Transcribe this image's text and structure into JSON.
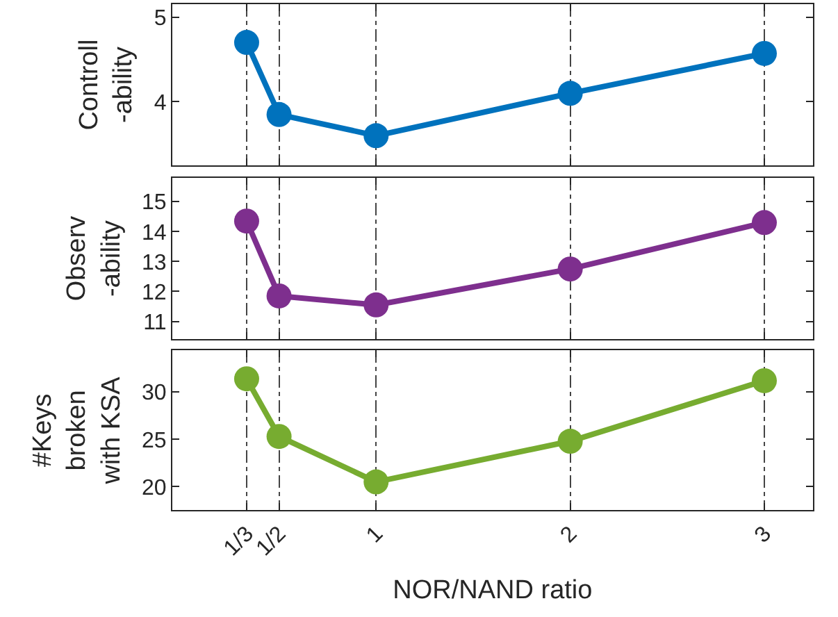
{
  "chart_data": [
    {
      "type": "line",
      "ylabel": "Controll\n-ability",
      "x": [
        0.333,
        0.5,
        1,
        2,
        3
      ],
      "xlim": [
        -0.05,
        3.25
      ],
      "series": [
        {
          "color": "#0072bd",
          "values": [
            4.7,
            3.85,
            3.6,
            4.1,
            4.57
          ]
        }
      ],
      "ylim": [
        3.25,
        5.15
      ],
      "yticks": [
        4,
        5
      ],
      "grid": "x",
      "marker": "circle",
      "line_style": "solid",
      "tick_labels": "y"
    },
    {
      "type": "line",
      "ylabel": "Observ\n-ability",
      "x": [
        0.333,
        0.5,
        1,
        2,
        3
      ],
      "xlim": [
        -0.05,
        3.25
      ],
      "series": [
        {
          "color": "#7e2f8e",
          "values": [
            14.35,
            11.85,
            11.55,
            12.75,
            14.3
          ]
        }
      ],
      "ylim": [
        10.4,
        15.8
      ],
      "yticks": [
        11,
        12,
        13,
        14,
        15
      ],
      "grid": "x",
      "marker": "circle",
      "line_style": "solid",
      "tick_labels": "y"
    },
    {
      "type": "line",
      "ylabel": "#Keys\nbroken\nwith KSA",
      "xlabel": "NOR/NAND ratio",
      "x": [
        0.333,
        0.5,
        1,
        2,
        3
      ],
      "xlim": [
        -0.05,
        3.25
      ],
      "xticks": [
        {
          "value": 0.333,
          "label": "1/3"
        },
        {
          "value": 0.5,
          "label": "1/2"
        },
        1,
        2,
        3
      ],
      "series": [
        {
          "color": "#77ac30",
          "values": [
            31.4,
            25.3,
            20.5,
            24.8,
            31.2
          ]
        }
      ],
      "ylim": [
        17.5,
        34.4
      ],
      "yticks": [
        20,
        25,
        30
      ],
      "grid": "x",
      "marker": "circle",
      "line_style": "solid"
    }
  ]
}
